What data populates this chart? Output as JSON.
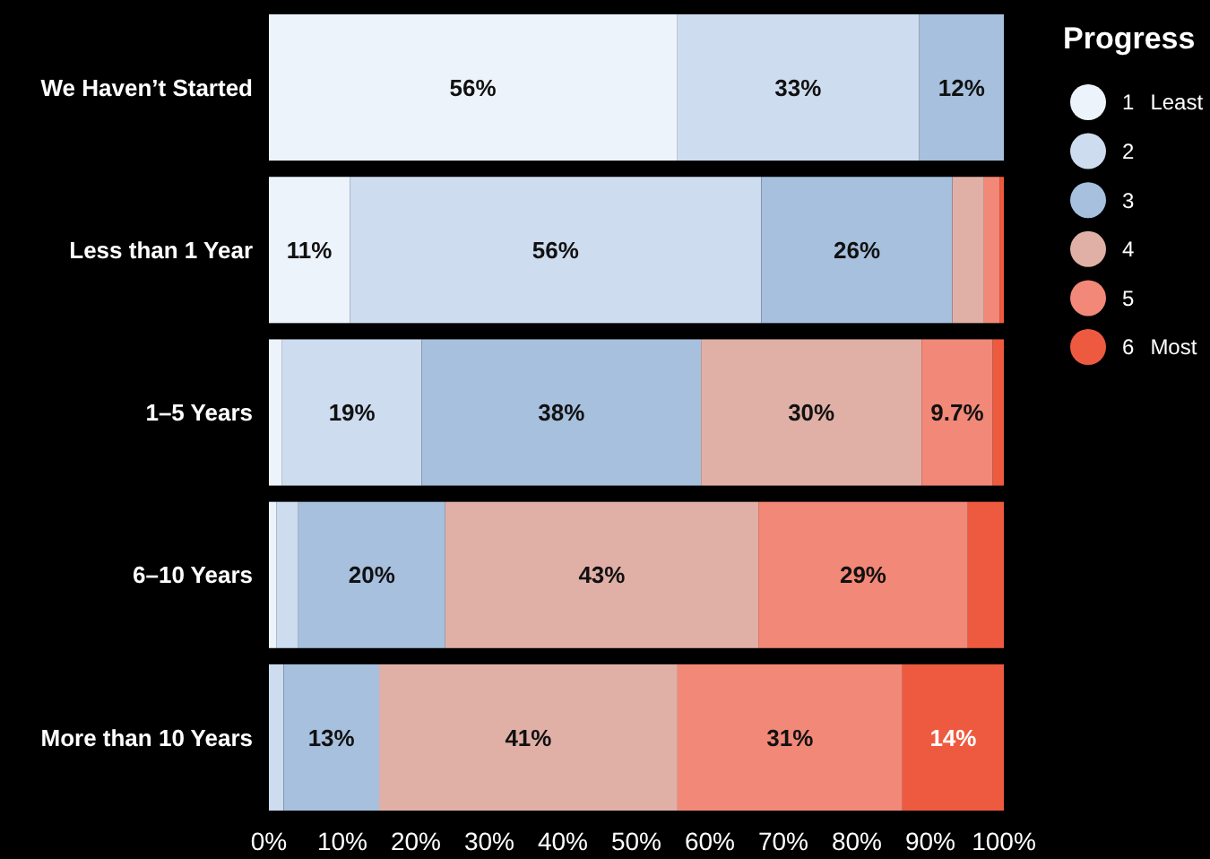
{
  "chart_data": {
    "type": "bar",
    "orientation": "horizontal",
    "stacked": true,
    "legend_title": "Progress",
    "legend": "top right",
    "grid": false,
    "categories": [
      "We Haven’t Started",
      "Less than 1 Year",
      "1–5 Years",
      "6–10 Years",
      "More than 10  Years"
    ],
    "xlim": [
      0,
      100
    ],
    "xticks": [
      {
        "value": 0,
        "label": "0%"
      },
      {
        "value": 10,
        "label": "10%"
      },
      {
        "value": 20,
        "label": "20%"
      },
      {
        "value": 30,
        "label": "30%"
      },
      {
        "value": 40,
        "label": "40%"
      },
      {
        "value": 50,
        "label": "50%"
      },
      {
        "value": 60,
        "label": "60%"
      },
      {
        "value": 70,
        "label": "70%"
      },
      {
        "value": 80,
        "label": "80%"
      },
      {
        "value": 90,
        "label": "90%"
      },
      {
        "value": 100,
        "label": "100%"
      }
    ],
    "series": [
      {
        "name": "1 Least",
        "color": "#edf3fb",
        "values": [
          55.5,
          11,
          1.8,
          1,
          0
        ],
        "value_labels": [
          "56%",
          "11%",
          null,
          null,
          null
        ]
      },
      {
        "name": "2",
        "color": "#cddcee",
        "values": [
          33,
          56,
          19,
          3,
          2
        ],
        "value_labels": [
          "33%",
          "56%",
          "19%",
          null,
          null
        ]
      },
      {
        "name": "3",
        "color": "#a6c0de",
        "values": [
          11.5,
          26,
          38,
          20,
          13
        ],
        "value_labels": [
          "12%",
          "26%",
          "38%",
          "20%",
          "13%"
        ]
      },
      {
        "name": "4",
        "color": "#e0b0a6",
        "values": [
          0,
          4.3,
          30,
          42.6,
          40.6
        ],
        "value_labels": [
          null,
          null,
          "30%",
          "43%",
          "41%"
        ]
      },
      {
        "name": "5",
        "color": "#f28878",
        "values": [
          0,
          2.1,
          9.7,
          28.5,
          30.6
        ],
        "value_labels": [
          null,
          null,
          "9.7%",
          "29%",
          "31%"
        ]
      },
      {
        "name": "6 Most",
        "color": "#ee5a40",
        "values": [
          0,
          0.6,
          1.5,
          4.9,
          13.8
        ],
        "value_labels": [
          null,
          null,
          null,
          null,
          "14%"
        ]
      }
    ]
  }
}
